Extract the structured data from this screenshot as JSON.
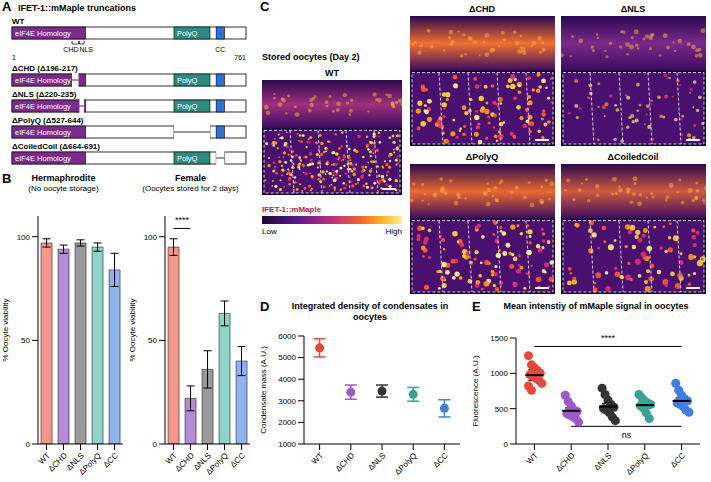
{
  "diagram": {
    "letter": "A",
    "title": "IFET-1::mMaple truncations",
    "start": 1,
    "end": 761,
    "domains": [
      {
        "label": "eIF4E Homology",
        "start": 1,
        "end": 240,
        "color": "#7a2b8c"
      },
      {
        "label": "PolyQ",
        "start": 527,
        "end": 644,
        "color": "#2f8a80"
      },
      {
        "label": "CC",
        "start": 664,
        "end": 691,
        "color": "#2f6fd8"
      }
    ],
    "motifs": [
      {
        "label": "CHD",
        "start": 196,
        "end": 217
      },
      {
        "label": "NLS",
        "start": 220,
        "end": 235
      }
    ],
    "constructs": [
      {
        "name": "WT"
      },
      {
        "name": "ΔCHD (Δ196-217)",
        "deleted": [
          196,
          217
        ]
      },
      {
        "name": "ΔNLS (Δ220-235)",
        "deleted": [
          220,
          235
        ]
      },
      {
        "name": "ΔPolyQ (Δ527-644)",
        "deleted": [
          527,
          644
        ]
      },
      {
        "name": "ΔCoiledCoil (Δ664-691)",
        "deleted": [
          664,
          691
        ]
      }
    ]
  },
  "images": {
    "letter": "C",
    "title": "Stored oocytes (Day 2)",
    "panels": [
      "WT",
      "ΔCHD",
      "ΔNLS",
      "ΔPolyQ",
      "ΔCoiledCoil"
    ],
    "colorbar": {
      "label": "IFET-1::mMaple",
      "low": "Low",
      "high": "High"
    }
  },
  "chart_data": [
    {
      "panel": "B",
      "type": "bar",
      "title": "Hermaphrodite",
      "subtitle": "(No oocyte storage)",
      "y_label": "% Oocyte viability",
      "categories": [
        "WT",
        "ΔCHD",
        "ΔNLS",
        "ΔPolyQ",
        "ΔCC"
      ],
      "values": [
        97,
        94,
        97,
        95,
        84
      ],
      "errors": [
        2,
        2,
        1.5,
        2,
        8
      ],
      "colors": [
        "#f4978a",
        "#b58bd6",
        "#9a9a9a",
        "#8ed3c8",
        "#8fb3ee"
      ],
      "ylim": [
        0,
        110
      ],
      "yticks": [
        0,
        50,
        100
      ]
    },
    {
      "type": "bar",
      "title": "Female",
      "subtitle": "(Oocytes stored for 2 days)",
      "y_label": "% Oocyte viability",
      "categories": [
        "WT",
        "ΔCHD",
        "ΔNLS",
        "ΔPolyQ",
        "ΔCC"
      ],
      "values": [
        95,
        22,
        36,
        63,
        40
      ],
      "errors": [
        4,
        6,
        9,
        6,
        7
      ],
      "colors": [
        "#f4978a",
        "#b58bd6",
        "#9a9a9a",
        "#8ed3c8",
        "#8fb3ee"
      ],
      "ylim": [
        0,
        110
      ],
      "yticks": [
        0,
        50,
        100
      ],
      "annotations": [
        {
          "text": "****",
          "from": "WT",
          "to": "ΔCHD",
          "y": 104
        }
      ]
    },
    {
      "panel": "D",
      "type": "scatter",
      "title": "Integrated density of condensates in oocytes",
      "y_label": "Condensate mass (A.U.)",
      "categories": [
        "WT",
        "ΔCHD",
        "ΔNLS",
        "ΔPolyQ",
        "ΔCC"
      ],
      "values": [
        5450,
        3400,
        3450,
        3300,
        2650
      ],
      "errors": [
        420,
        330,
        280,
        320,
        400
      ],
      "colors": [
        "#e34a3c",
        "#9b59c9",
        "#333333",
        "#37a394",
        "#3f7fe0"
      ],
      "ylim": [
        1000,
        6000
      ],
      "yticks": [
        1000,
        2000,
        3000,
        4000,
        5000,
        6000
      ]
    },
    {
      "panel": "E",
      "type": "scatter",
      "title": "Mean intenstiy of mMaple signal in oocytes",
      "y_label": "Fluorescence (A.U.)",
      "categories": [
        "WT",
        "ΔCHD",
        "ΔNLS",
        "ΔPolyQ",
        "ΔCC"
      ],
      "points": [
        [
          1250,
          1120,
          1080,
          1040,
          1000,
          980,
          960,
          930,
          900,
          860,
          820,
          760
        ],
        [
          690,
          600,
          540,
          480,
          460,
          430,
          410,
          390,
          360,
          310
        ],
        [
          790,
          700,
          620,
          560,
          520,
          500,
          480,
          440,
          380,
          330
        ],
        [
          700,
          650,
          610,
          580,
          560,
          540,
          510,
          440,
          360
        ],
        [
          860,
          760,
          690,
          640,
          610,
          580,
          560,
          530,
          480,
          450
        ]
      ],
      "values": [
        975,
        470,
        530,
        550,
        610
      ],
      "errors": [
        75,
        40,
        45,
        40,
        40
      ],
      "colors": [
        "#e34a3c",
        "#9b59c9",
        "#333333",
        "#37a394",
        "#3f7fe0"
      ],
      "ylim": [
        0,
        1500
      ],
      "yticks": [
        0,
        500,
        1000,
        1500
      ],
      "annotations": [
        {
          "text": "****",
          "from": "WT",
          "to": "ΔCC",
          "y": 1380
        },
        {
          "text": "ns",
          "from": "ΔCHD",
          "to": "ΔCC",
          "y": 250
        }
      ]
    }
  ]
}
